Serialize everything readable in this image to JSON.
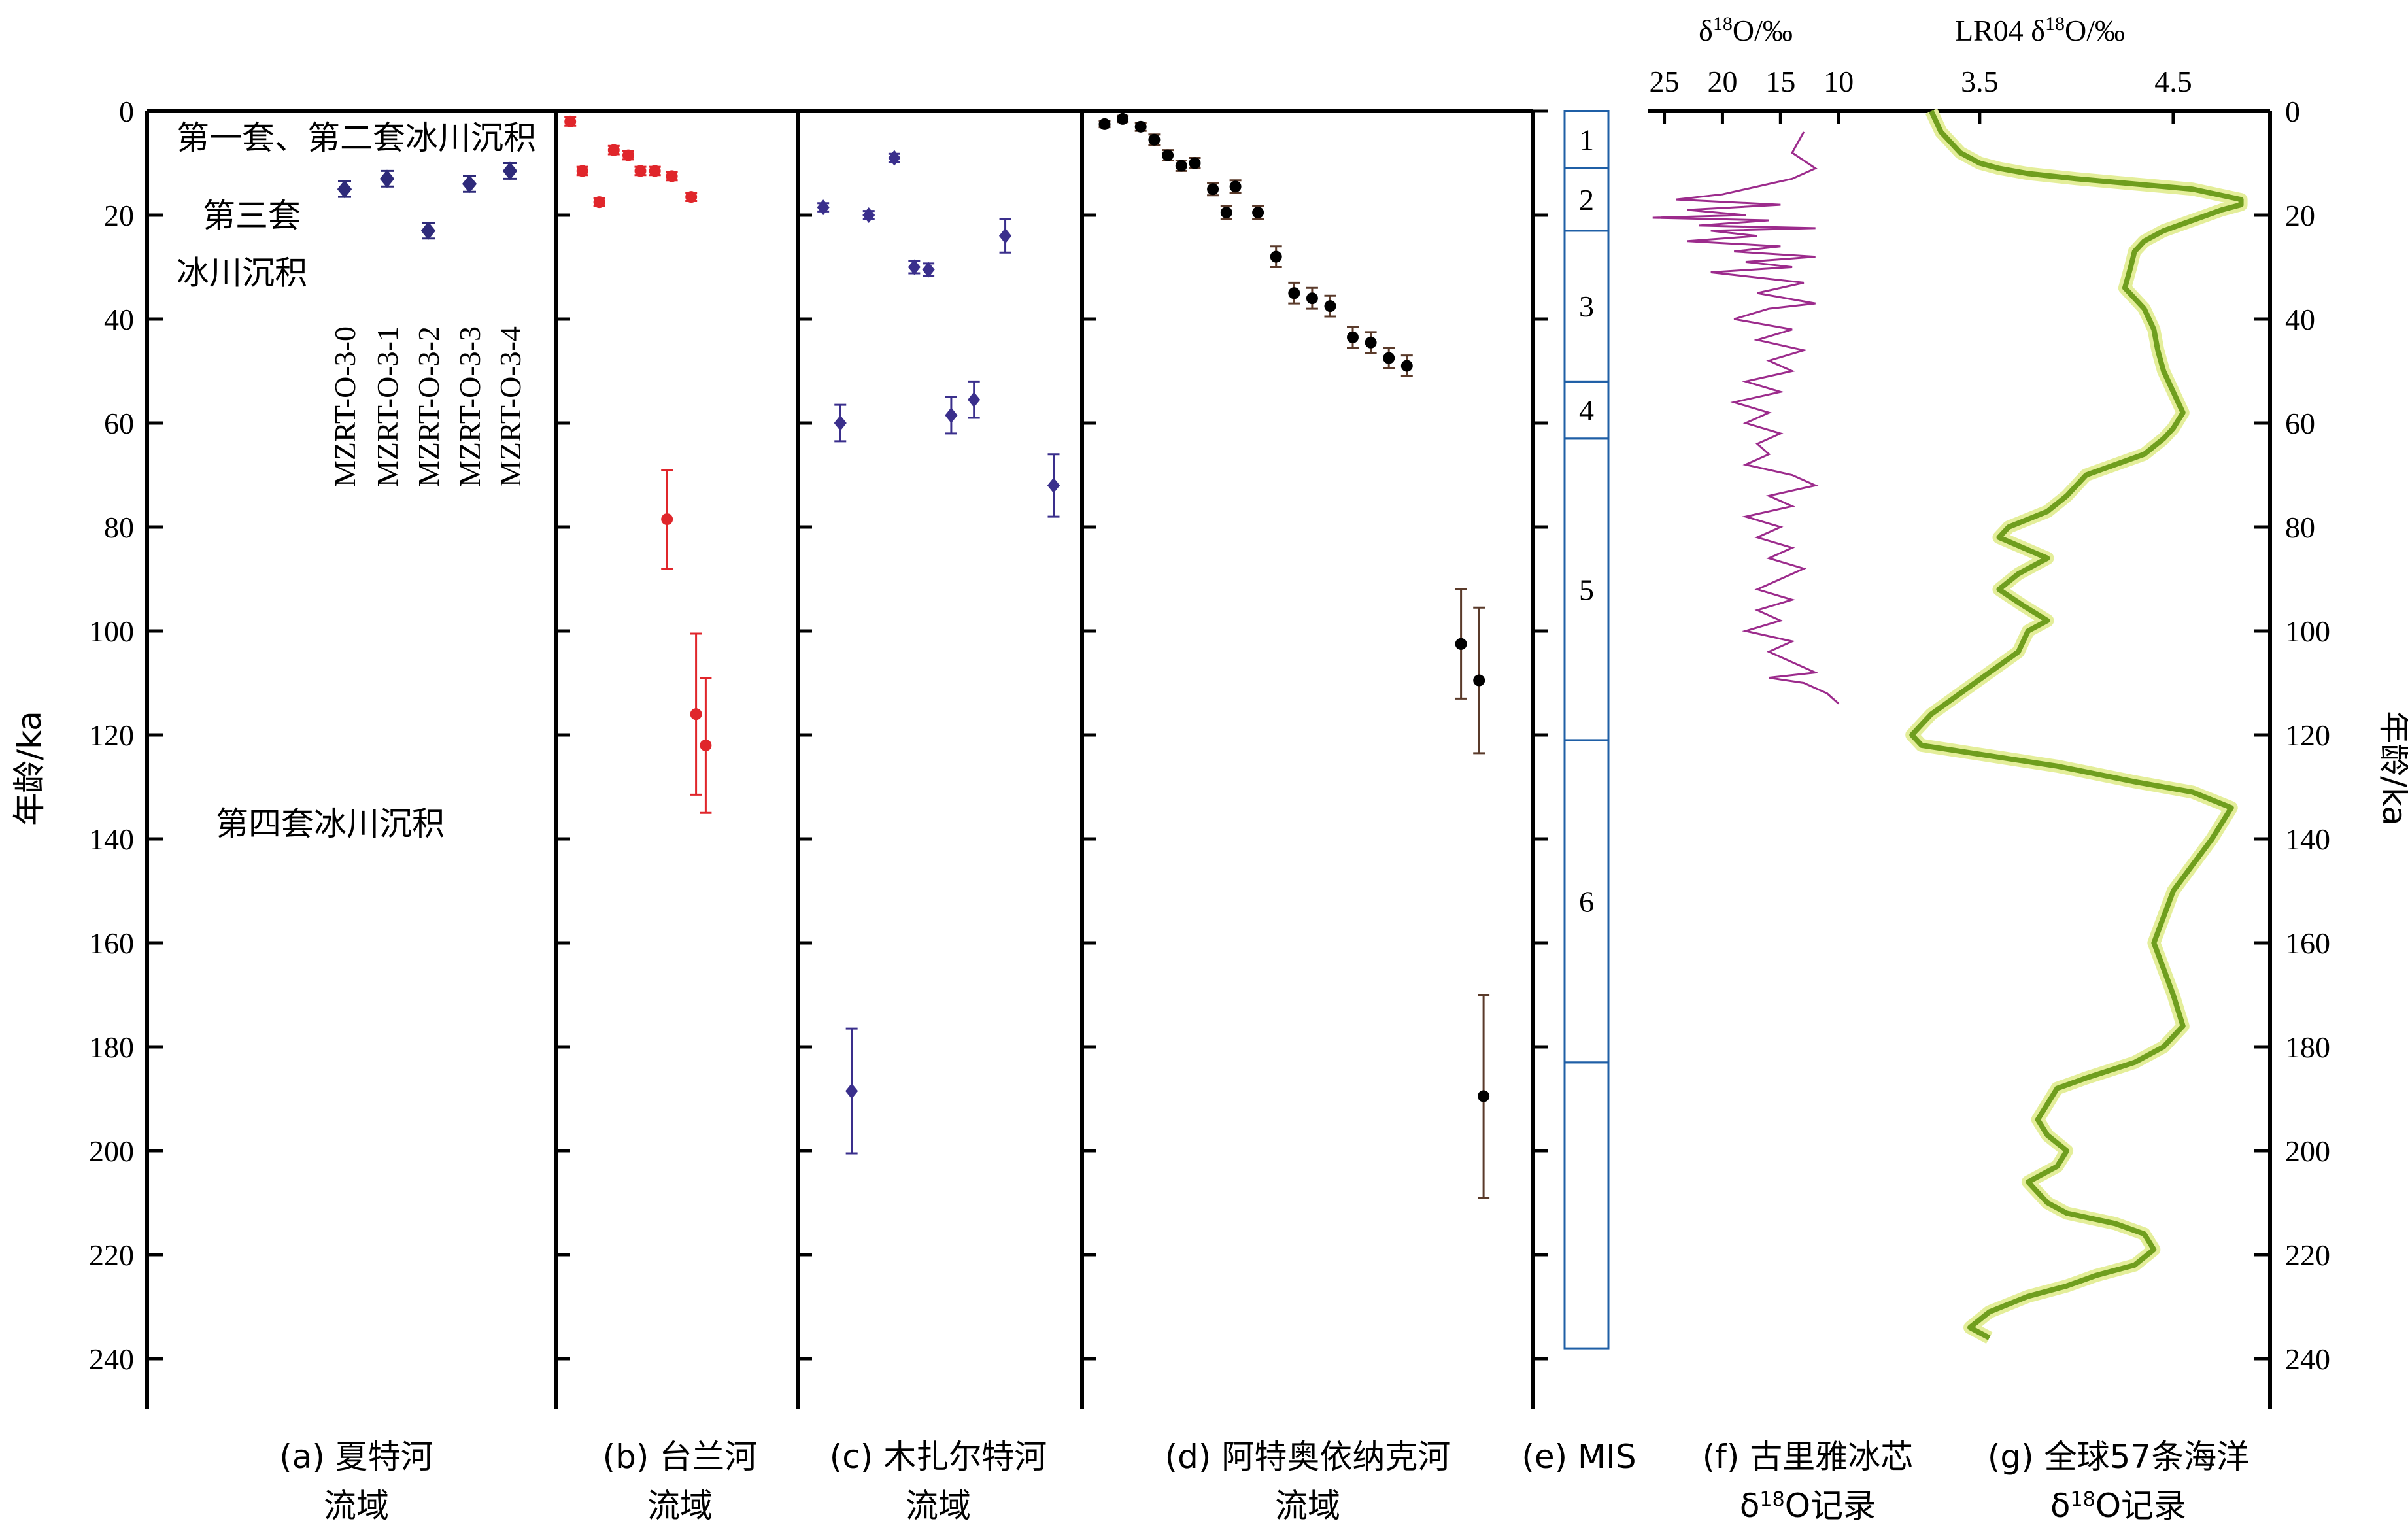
{
  "chart_data": {
    "type": "scatter",
    "y_axis": {
      "label": "年龄/ka",
      "ticks": [
        0,
        20,
        40,
        60,
        80,
        100,
        120,
        140,
        160,
        180,
        200,
        220,
        240
      ],
      "range": [
        0,
        250
      ],
      "inverted": true
    },
    "panels": [
      {
        "id": "a",
        "caption_line1": "(a) 夏特河",
        "caption_line2": "流域",
        "color": "#2e2a7a",
        "annotations": [
          {
            "text": "第一套、第二套冰川沉积",
            "age": 5
          },
          {
            "text": "第三套",
            "age": 20
          },
          {
            "text": "冰川沉积",
            "age": 31
          },
          {
            "text": "第四套冰川沉积",
            "age": 137
          }
        ],
        "samples": [
          {
            "name": "MZRT-O-3-0",
            "age": 15,
            "err": 1.5
          },
          {
            "name": "MZRT-O-3-1",
            "age": 13,
            "err": 1.5
          },
          {
            "name": "MZRT-O-3-2",
            "age": 23,
            "err": 1.5
          },
          {
            "name": "MZRT-O-3-3",
            "age": 14,
            "err": 1.5
          },
          {
            "name": "MZRT-O-3-4",
            "age": 11.5,
            "err": 1.5
          }
        ]
      },
      {
        "id": "b",
        "caption_line1": "(b) 台兰河",
        "caption_line2": "流域",
        "color": "#e0262b",
        "points": [
          {
            "x": 0.06,
            "age": 2,
            "err": 0.8
          },
          {
            "x": 0.11,
            "age": 11.5,
            "err": 0.8
          },
          {
            "x": 0.18,
            "age": 17.5,
            "err": 0.8
          },
          {
            "x": 0.24,
            "age": 7.5,
            "err": 0.8
          },
          {
            "x": 0.3,
            "age": 8.5,
            "err": 0.8
          },
          {
            "x": 0.35,
            "age": 11.5,
            "err": 0.8
          },
          {
            "x": 0.41,
            "age": 11.5,
            "err": 0.8
          },
          {
            "x": 0.48,
            "age": 12.5,
            "err": 0.8
          },
          {
            "x": 0.56,
            "age": 16.5,
            "err": 0.8
          },
          {
            "x": 0.46,
            "age": 78.5,
            "err": 9.5
          },
          {
            "x": 0.58,
            "age": 116,
            "err": 15.5
          },
          {
            "x": 0.62,
            "age": 122,
            "err": 13
          }
        ]
      },
      {
        "id": "c",
        "caption_line1": "(c) 木扎尔特河",
        "caption_line2": "流域",
        "color": "#3a2f8c",
        "points": [
          {
            "x": 0.09,
            "age": 18.5,
            "err": 0.8
          },
          {
            "x": 0.15,
            "age": 60,
            "err": 3.5
          },
          {
            "x": 0.19,
            "age": 188.5,
            "err": 12
          },
          {
            "x": 0.25,
            "age": 20,
            "err": 0.8
          },
          {
            "x": 0.34,
            "age": 9,
            "err": 0.8
          },
          {
            "x": 0.41,
            "age": 30,
            "err": 1.2
          },
          {
            "x": 0.46,
            "age": 30.5,
            "err": 1.2
          },
          {
            "x": 0.54,
            "age": 58.5,
            "err": 3.5
          },
          {
            "x": 0.62,
            "age": 55.5,
            "err": 3.5
          },
          {
            "x": 0.73,
            "age": 24,
            "err": 3.2
          },
          {
            "x": 0.9,
            "age": 72,
            "err": 6
          }
        ]
      },
      {
        "id": "d",
        "caption_line1": "(d) 阿特奥依纳克河",
        "caption_line2": "流域",
        "color": "#000000",
        "err_color": "#5a3a2a",
        "points": [
          {
            "x": 0.05,
            "age": 2.5,
            "err": 0.6
          },
          {
            "x": 0.09,
            "age": 1.5,
            "err": 0.6
          },
          {
            "x": 0.13,
            "age": 3,
            "err": 0.8
          },
          {
            "x": 0.16,
            "age": 5.5,
            "err": 1
          },
          {
            "x": 0.19,
            "age": 8.5,
            "err": 1
          },
          {
            "x": 0.22,
            "age": 10.5,
            "err": 1
          },
          {
            "x": 0.25,
            "age": 10,
            "err": 1
          },
          {
            "x": 0.29,
            "age": 15,
            "err": 1.2
          },
          {
            "x": 0.32,
            "age": 19.5,
            "err": 1.2
          },
          {
            "x": 0.34,
            "age": 14.5,
            "err": 1.2
          },
          {
            "x": 0.39,
            "age": 19.5,
            "err": 1.2
          },
          {
            "x": 0.43,
            "age": 28,
            "err": 2
          },
          {
            "x": 0.47,
            "age": 35,
            "err": 2
          },
          {
            "x": 0.51,
            "age": 36,
            "err": 2
          },
          {
            "x": 0.55,
            "age": 37.5,
            "err": 2
          },
          {
            "x": 0.6,
            "age": 43.5,
            "err": 2
          },
          {
            "x": 0.64,
            "age": 44.5,
            "err": 2
          },
          {
            "x": 0.68,
            "age": 47.5,
            "err": 2
          },
          {
            "x": 0.72,
            "age": 49,
            "err": 2
          },
          {
            "x": 0.84,
            "age": 102.5,
            "err": 10.5
          },
          {
            "x": 0.88,
            "age": 109.5,
            "err": 14
          },
          {
            "x": 0.89,
            "age": 189.5,
            "err": 19.5
          }
        ]
      },
      {
        "id": "e",
        "caption_line1": "(e) MIS",
        "caption_line2": "",
        "stages": [
          {
            "label": "1",
            "top": 0,
            "bottom": 11
          },
          {
            "label": "2",
            "top": 11,
            "bottom": 23
          },
          {
            "label": "3",
            "top": 23,
            "bottom": 52
          },
          {
            "label": "4",
            "top": 52,
            "bottom": 63
          },
          {
            "label": "5",
            "top": 63,
            "bottom": 121
          },
          {
            "label": "6",
            "top": 121,
            "bottom": 183
          },
          {
            "label": "",
            "top": 183,
            "bottom": 238
          }
        ]
      },
      {
        "id": "f",
        "caption_line1": "(f) 古里雅冰芯",
        "caption_line2": "δ18O记录",
        "color": "#9c2b8c",
        "x_axis_label": "δ18O/‰",
        "x_ticks": [
          25,
          20,
          15,
          10
        ],
        "x_range": [
          27,
          9
        ],
        "series": [
          [
            13,
            4
          ],
          [
            14,
            8
          ],
          [
            12,
            11
          ],
          [
            14,
            13
          ],
          [
            20,
            16
          ],
          [
            24,
            17
          ],
          [
            15,
            18
          ],
          [
            23,
            19
          ],
          [
            18,
            20
          ],
          [
            26,
            20.5
          ],
          [
            16,
            21
          ],
          [
            22,
            22
          ],
          [
            12,
            22.5
          ],
          [
            21,
            23
          ],
          [
            17,
            24
          ],
          [
            23,
            25
          ],
          [
            15,
            26
          ],
          [
            19,
            27
          ],
          [
            12,
            28
          ],
          [
            18,
            29
          ],
          [
            14,
            30
          ],
          [
            21,
            31
          ],
          [
            13,
            33
          ],
          [
            17,
            35
          ],
          [
            12,
            37
          ],
          [
            16,
            38
          ],
          [
            19,
            40
          ],
          [
            14,
            42
          ],
          [
            17,
            44
          ],
          [
            13,
            46
          ],
          [
            16,
            48
          ],
          [
            14,
            50
          ],
          [
            18,
            52
          ],
          [
            15,
            54
          ],
          [
            19,
            56
          ],
          [
            16,
            58
          ],
          [
            18,
            60
          ],
          [
            15,
            62
          ],
          [
            17,
            64
          ],
          [
            16,
            66
          ],
          [
            18,
            68
          ],
          [
            14,
            70
          ],
          [
            12,
            72
          ],
          [
            16,
            74
          ],
          [
            14,
            76
          ],
          [
            18,
            78
          ],
          [
            15,
            80
          ],
          [
            17,
            82
          ],
          [
            14,
            84
          ],
          [
            16,
            86
          ],
          [
            13,
            88
          ],
          [
            15,
            90
          ],
          [
            17,
            92
          ],
          [
            14,
            94
          ],
          [
            17,
            96
          ],
          [
            15,
            98
          ],
          [
            18,
            100
          ],
          [
            14,
            102
          ],
          [
            16,
            104
          ],
          [
            14,
            106
          ],
          [
            12,
            108
          ],
          [
            16,
            109
          ],
          [
            13,
            110
          ],
          [
            11,
            112
          ],
          [
            10,
            114
          ]
        ]
      },
      {
        "id": "g",
        "caption_line1": "(g) 全球57条海洋",
        "caption_line2": "δ18O记录",
        "color": "#6f9e1e",
        "glow": "#e4ee9a",
        "x_axis_label": "LR04 δ18O/‰",
        "x_ticks": [
          3.5,
          4.5
        ],
        "x_range": [
          2.95,
          5.0
        ],
        "series": [
          [
            3.25,
            0
          ],
          [
            3.3,
            4
          ],
          [
            3.35,
            6
          ],
          [
            3.4,
            8
          ],
          [
            3.5,
            10
          ],
          [
            3.6,
            11
          ],
          [
            3.75,
            12
          ],
          [
            4.0,
            13
          ],
          [
            4.3,
            14
          ],
          [
            4.6,
            15
          ],
          [
            4.85,
            17
          ],
          [
            4.85,
            18
          ],
          [
            4.75,
            19
          ],
          [
            4.6,
            21
          ],
          [
            4.45,
            23
          ],
          [
            4.35,
            25
          ],
          [
            4.3,
            27
          ],
          [
            4.28,
            30
          ],
          [
            4.25,
            34
          ],
          [
            4.35,
            38
          ],
          [
            4.4,
            42
          ],
          [
            4.42,
            46
          ],
          [
            4.45,
            50
          ],
          [
            4.5,
            54
          ],
          [
            4.55,
            58
          ],
          [
            4.5,
            61
          ],
          [
            4.45,
            63
          ],
          [
            4.35,
            66
          ],
          [
            4.05,
            70
          ],
          [
            3.95,
            74
          ],
          [
            3.85,
            77
          ],
          [
            3.65,
            80
          ],
          [
            3.6,
            82
          ],
          [
            3.85,
            86
          ],
          [
            3.7,
            89
          ],
          [
            3.6,
            92
          ],
          [
            3.72,
            95
          ],
          [
            3.85,
            98
          ],
          [
            3.75,
            100
          ],
          [
            3.7,
            104
          ],
          [
            3.55,
            108
          ],
          [
            3.4,
            112
          ],
          [
            3.25,
            116
          ],
          [
            3.15,
            120
          ],
          [
            3.2,
            122
          ],
          [
            3.55,
            124
          ],
          [
            3.9,
            126
          ],
          [
            4.3,
            129
          ],
          [
            4.6,
            131
          ],
          [
            4.8,
            134
          ],
          [
            4.75,
            137
          ],
          [
            4.7,
            140
          ],
          [
            4.6,
            145
          ],
          [
            4.5,
            150
          ],
          [
            4.45,
            155
          ],
          [
            4.4,
            160
          ],
          [
            4.45,
            165
          ],
          [
            4.5,
            170
          ],
          [
            4.55,
            176
          ],
          [
            4.45,
            180
          ],
          [
            4.3,
            183
          ],
          [
            4.05,
            186
          ],
          [
            3.9,
            188
          ],
          [
            3.85,
            191
          ],
          [
            3.8,
            194
          ],
          [
            3.85,
            197
          ],
          [
            3.95,
            200
          ],
          [
            3.9,
            203
          ],
          [
            3.75,
            206
          ],
          [
            3.85,
            210
          ],
          [
            3.95,
            212
          ],
          [
            4.2,
            214
          ],
          [
            4.35,
            216
          ],
          [
            4.4,
            219
          ],
          [
            4.3,
            222
          ],
          [
            4.1,
            224
          ],
          [
            3.95,
            226
          ],
          [
            3.75,
            228
          ],
          [
            3.55,
            231
          ],
          [
            3.45,
            234
          ],
          [
            3.55,
            236
          ]
        ]
      }
    ]
  }
}
